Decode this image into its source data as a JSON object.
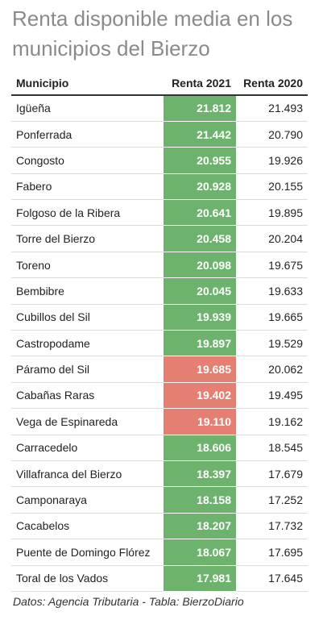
{
  "title": "Renta disponible media en los municipios del Bierzo",
  "source": "Datos: Agencia Tributaria - Tabla: BierzoDiario",
  "colors": {
    "above": "#6db36d",
    "below": "#e47f72"
  },
  "chart_data": {
    "type": "table",
    "title": "Renta disponible media en los municipios del Bierzo",
    "columns": [
      "Municipio",
      "Renta 2021",
      "Renta 2020"
    ],
    "rows": [
      {
        "municipio": "Igüeña",
        "renta_2021": "21.812",
        "renta_2020": "21.493",
        "highlight": "above"
      },
      {
        "municipio": "Ponferrada",
        "renta_2021": "21.442",
        "renta_2020": "20.790",
        "highlight": "above"
      },
      {
        "municipio": "Congosto",
        "renta_2021": "20.955",
        "renta_2020": "19.926",
        "highlight": "above"
      },
      {
        "municipio": "Fabero",
        "renta_2021": "20.928",
        "renta_2020": "20.155",
        "highlight": "above"
      },
      {
        "municipio": "Folgoso de la Ribera",
        "renta_2021": "20.641",
        "renta_2020": "19.895",
        "highlight": "above"
      },
      {
        "municipio": "Torre del Bierzo",
        "renta_2021": "20.458",
        "renta_2020": "20.204",
        "highlight": "above"
      },
      {
        "municipio": "Toreno",
        "renta_2021": "20.098",
        "renta_2020": "19.675",
        "highlight": "above"
      },
      {
        "municipio": "Bembibre",
        "renta_2021": "20.045",
        "renta_2020": "19.633",
        "highlight": "above"
      },
      {
        "municipio": "Cubillos del Sil",
        "renta_2021": "19.939",
        "renta_2020": "19.665",
        "highlight": "above"
      },
      {
        "municipio": "Castropodame",
        "renta_2021": "19.897",
        "renta_2020": "19.529",
        "highlight": "above"
      },
      {
        "municipio": "Páramo del Sil",
        "renta_2021": "19.685",
        "renta_2020": "20.062",
        "highlight": "below"
      },
      {
        "municipio": "Cabañas Raras",
        "renta_2021": "19.402",
        "renta_2020": "19.495",
        "highlight": "below"
      },
      {
        "municipio": "Vega de Espinareda",
        "renta_2021": "19.110",
        "renta_2020": "19.162",
        "highlight": "below"
      },
      {
        "municipio": "Carracedelo",
        "renta_2021": "18.606",
        "renta_2020": "18.545",
        "highlight": "above"
      },
      {
        "municipio": "Villafranca del Bierzo",
        "renta_2021": "18.397",
        "renta_2020": "17.679",
        "highlight": "above"
      },
      {
        "municipio": "Camponaraya",
        "renta_2021": "18.158",
        "renta_2020": "17.252",
        "highlight": "above"
      },
      {
        "municipio": "Cacabelos",
        "renta_2021": "18.207",
        "renta_2020": "17.732",
        "highlight": "above"
      },
      {
        "municipio": "Puente de Domingo Flórez",
        "renta_2021": "18.067",
        "renta_2020": "17.695",
        "highlight": "above"
      },
      {
        "municipio": "Toral de los Vados",
        "renta_2021": "17.981",
        "renta_2020": "17.645",
        "highlight": "above"
      }
    ]
  }
}
